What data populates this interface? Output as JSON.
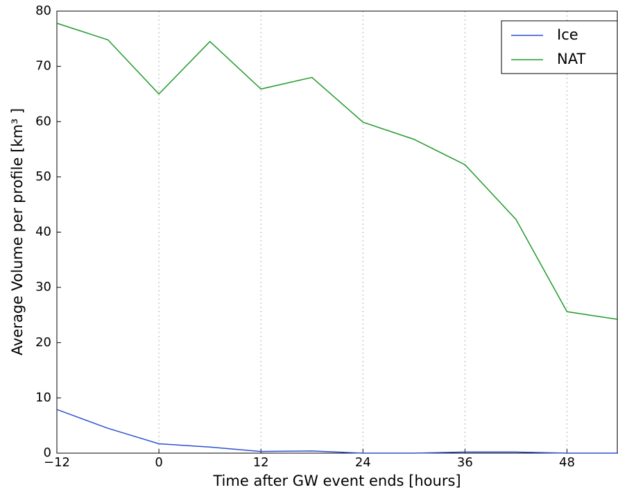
{
  "chart_data": {
    "type": "line",
    "xlabel": "Time after GW event ends [hours]",
    "ylabel": "Average Volume per profile [km³ ]",
    "x": [
      -12,
      -6,
      0,
      6,
      12,
      18,
      24,
      30,
      36,
      42,
      48,
      54
    ],
    "series": [
      {
        "name": "Ice",
        "color": "#2c4fd0",
        "values": [
          7.9,
          4.5,
          1.7,
          1.1,
          0.3,
          0.4,
          0.0,
          0.0,
          0.2,
          0.2,
          0.0,
          0.0
        ]
      },
      {
        "name": "NAT",
        "color": "#1f9a2a",
        "values": [
          77.8,
          74.8,
          65.0,
          74.5,
          65.9,
          68.0,
          59.9,
          56.8,
          52.2,
          42.3,
          25.6,
          24.2
        ]
      }
    ],
    "xlim": [
      -12,
      54
    ],
    "ylim": [
      0,
      80
    ],
    "xticks": [
      {
        "value": -12,
        "label": "−12"
      },
      0,
      12,
      24,
      36,
      48
    ],
    "yticks": [
      0,
      10,
      20,
      30,
      40,
      50,
      60,
      70,
      80
    ],
    "grid": "x",
    "legend": "upper right"
  }
}
